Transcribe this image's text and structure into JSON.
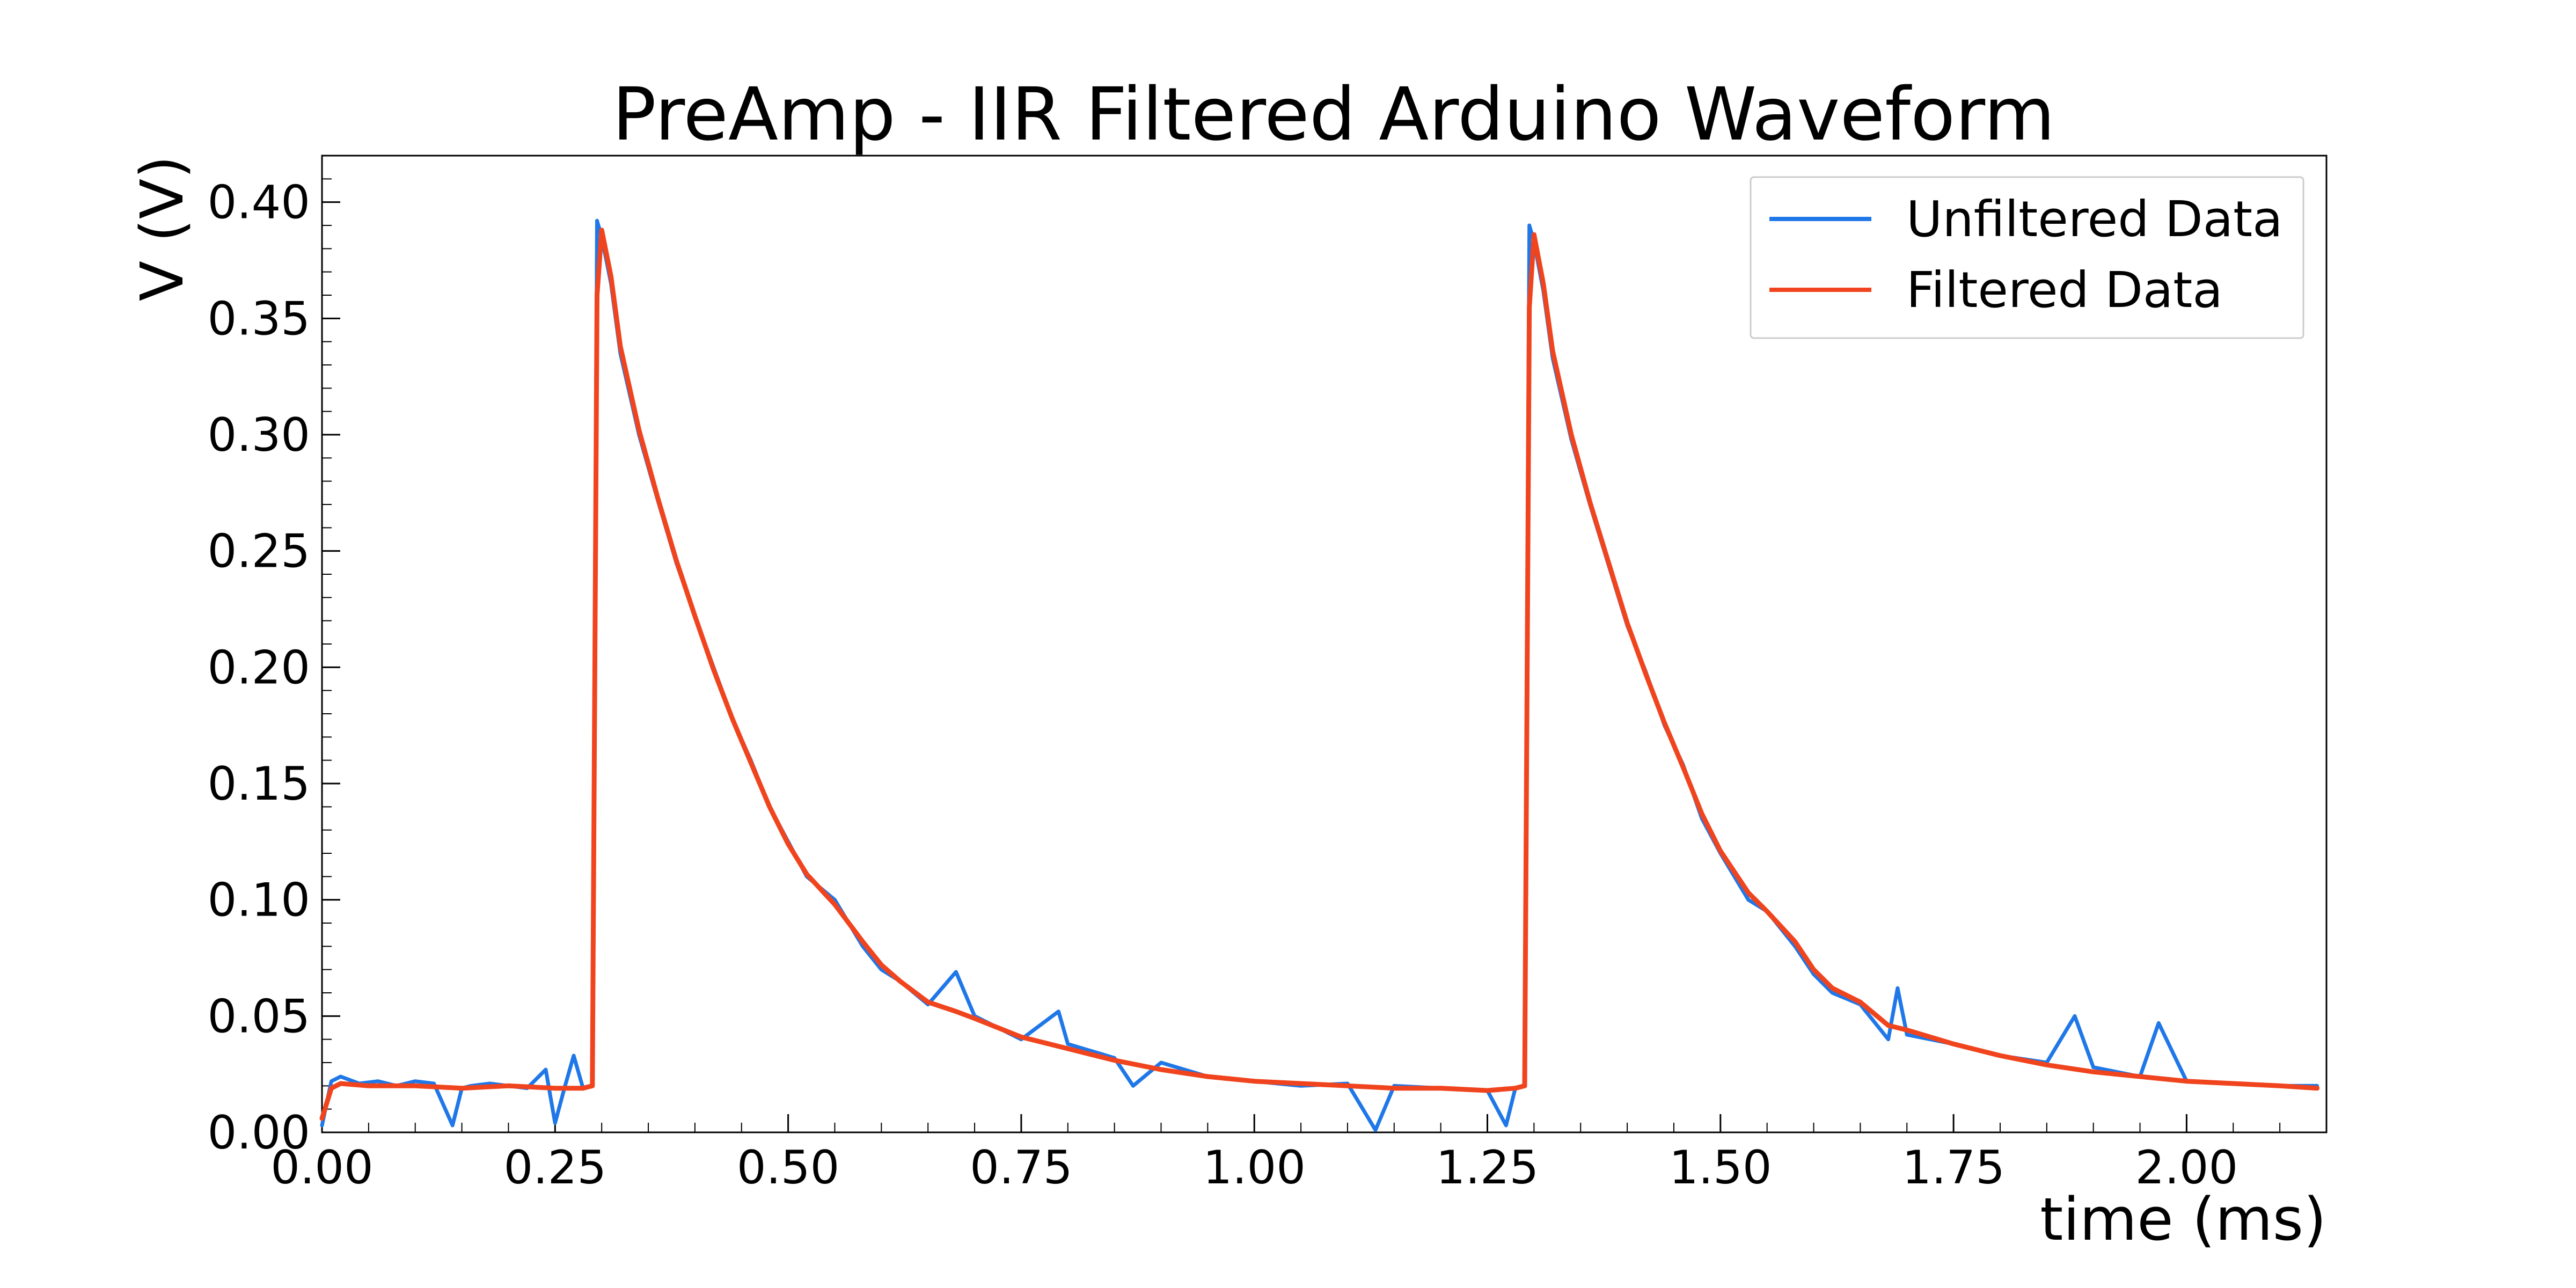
{
  "chart_data": {
    "type": "line",
    "title": "PreAmp - IIR Filtered Arduino Waveform",
    "xlabel": "time (ms)",
    "ylabel": "V (V)",
    "xlim": [
      0.0,
      2.15
    ],
    "ylim": [
      0.0,
      0.42
    ],
    "x_ticks": [
      0.0,
      0.25,
      0.5,
      0.75,
      1.0,
      1.25,
      1.5,
      1.75,
      2.0
    ],
    "x_tick_labels": [
      "0.00",
      "0.25",
      "0.50",
      "0.75",
      "1.00",
      "1.25",
      "1.50",
      "1.75",
      "2.00"
    ],
    "y_ticks": [
      0.0,
      0.05,
      0.1,
      0.15,
      0.2,
      0.25,
      0.3,
      0.35,
      0.4
    ],
    "y_tick_labels": [
      "0.00",
      "0.05",
      "0.10",
      "0.15",
      "0.20",
      "0.25",
      "0.30",
      "0.35",
      "0.40"
    ],
    "grid": false,
    "legend_position": "top-right",
    "series": [
      {
        "name": "Unfiltered Data",
        "color": "#1f77e8",
        "x": [
          0.0,
          0.01,
          0.02,
          0.04,
          0.06,
          0.08,
          0.1,
          0.12,
          0.14,
          0.15,
          0.16,
          0.18,
          0.2,
          0.22,
          0.24,
          0.25,
          0.26,
          0.27,
          0.28,
          0.29,
          0.295,
          0.3,
          0.31,
          0.32,
          0.34,
          0.36,
          0.38,
          0.4,
          0.42,
          0.44,
          0.46,
          0.48,
          0.5,
          0.52,
          0.55,
          0.58,
          0.6,
          0.62,
          0.65,
          0.68,
          0.7,
          0.75,
          0.79,
          0.8,
          0.85,
          0.87,
          0.9,
          0.95,
          1.0,
          1.05,
          1.1,
          1.13,
          1.15,
          1.2,
          1.25,
          1.27,
          1.28,
          1.29,
          1.295,
          1.3,
          1.31,
          1.32,
          1.34,
          1.36,
          1.38,
          1.4,
          1.42,
          1.44,
          1.46,
          1.48,
          1.5,
          1.53,
          1.55,
          1.58,
          1.6,
          1.62,
          1.65,
          1.68,
          1.69,
          1.7,
          1.75,
          1.8,
          1.85,
          1.88,
          1.9,
          1.95,
          1.97,
          2.0,
          2.05,
          2.1,
          2.14
        ],
        "y": [
          0.003,
          0.022,
          0.024,
          0.021,
          0.022,
          0.02,
          0.022,
          0.021,
          0.003,
          0.019,
          0.02,
          0.021,
          0.02,
          0.019,
          0.027,
          0.004,
          0.019,
          0.033,
          0.019,
          0.02,
          0.392,
          0.385,
          0.365,
          0.335,
          0.3,
          0.272,
          0.245,
          0.222,
          0.2,
          0.178,
          0.16,
          0.14,
          0.125,
          0.11,
          0.1,
          0.08,
          0.07,
          0.065,
          0.055,
          0.069,
          0.05,
          0.04,
          0.052,
          0.038,
          0.032,
          0.02,
          0.03,
          0.024,
          0.022,
          0.02,
          0.021,
          0.001,
          0.02,
          0.019,
          0.018,
          0.003,
          0.019,
          0.02,
          0.39,
          0.383,
          0.362,
          0.333,
          0.298,
          0.27,
          0.244,
          0.218,
          0.198,
          0.175,
          0.158,
          0.135,
          0.12,
          0.1,
          0.095,
          0.08,
          0.068,
          0.06,
          0.055,
          0.04,
          0.062,
          0.042,
          0.038,
          0.033,
          0.03,
          0.05,
          0.028,
          0.024,
          0.047,
          0.022,
          0.021,
          0.02,
          0.02
        ]
      },
      {
        "name": "Filtered Data",
        "color": "#f0441e",
        "x": [
          0.0,
          0.01,
          0.02,
          0.05,
          0.1,
          0.15,
          0.2,
          0.25,
          0.28,
          0.29,
          0.295,
          0.3,
          0.31,
          0.32,
          0.34,
          0.36,
          0.38,
          0.4,
          0.42,
          0.44,
          0.46,
          0.48,
          0.5,
          0.52,
          0.55,
          0.58,
          0.6,
          0.62,
          0.65,
          0.68,
          0.7,
          0.75,
          0.8,
          0.85,
          0.9,
          0.95,
          1.0,
          1.05,
          1.1,
          1.15,
          1.2,
          1.25,
          1.28,
          1.29,
          1.295,
          1.3,
          1.31,
          1.32,
          1.34,
          1.36,
          1.38,
          1.4,
          1.42,
          1.44,
          1.46,
          1.48,
          1.5,
          1.53,
          1.55,
          1.58,
          1.6,
          1.62,
          1.65,
          1.68,
          1.7,
          1.75,
          1.8,
          1.85,
          1.9,
          1.95,
          2.0,
          2.05,
          2.1,
          2.14
        ],
        "y": [
          0.006,
          0.019,
          0.021,
          0.02,
          0.02,
          0.019,
          0.02,
          0.019,
          0.019,
          0.02,
          0.36,
          0.388,
          0.368,
          0.338,
          0.302,
          0.273,
          0.246,
          0.222,
          0.199,
          0.178,
          0.159,
          0.14,
          0.124,
          0.111,
          0.098,
          0.082,
          0.072,
          0.065,
          0.056,
          0.052,
          0.049,
          0.041,
          0.036,
          0.031,
          0.027,
          0.024,
          0.022,
          0.021,
          0.02,
          0.019,
          0.019,
          0.018,
          0.019,
          0.02,
          0.355,
          0.386,
          0.365,
          0.336,
          0.3,
          0.271,
          0.245,
          0.219,
          0.197,
          0.176,
          0.157,
          0.137,
          0.121,
          0.103,
          0.095,
          0.082,
          0.07,
          0.062,
          0.056,
          0.046,
          0.044,
          0.038,
          0.033,
          0.029,
          0.026,
          0.024,
          0.022,
          0.021,
          0.02,
          0.019
        ]
      }
    ]
  }
}
